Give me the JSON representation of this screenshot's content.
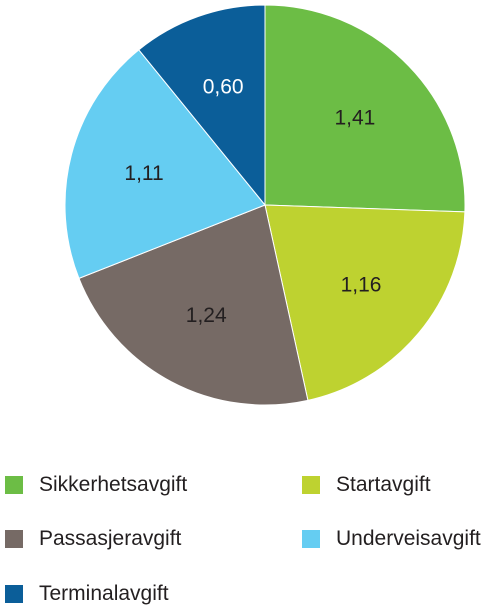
{
  "chart_data": {
    "type": "pie",
    "title": "",
    "categories": [
      "Sikkerhetsavgift",
      "Startavgift",
      "Passasjeravgift",
      "Underveisavgift",
      "Terminalavgift"
    ],
    "values": [
      1.41,
      1.16,
      1.24,
      1.11,
      0.6
    ],
    "value_labels": [
      "1,41",
      "1,16",
      "1,24",
      "1,11",
      "0,60"
    ],
    "slice_order_clockwise_from_top": [
      "Sikkerhetsavgift",
      "Startavgift",
      "Passasjeravgift",
      "Underveisavgift",
      "Terminalavgift"
    ],
    "colors": {
      "Sikkerhetsavgift": "#6cbd45",
      "Startavgift": "#bed230",
      "Passasjeravgift": "#766a65",
      "Underveisavgift": "#65cdf2",
      "Terminalavgift": "#0b5e99"
    },
    "label_colors": {
      "Sikkerhetsavgift": "#231f20",
      "Startavgift": "#231f20",
      "Passasjeravgift": "#231f20",
      "Underveisavgift": "#231f20",
      "Terminalavgift": "#ffffff"
    },
    "legend_position": "bottom",
    "legend_entries": [
      {
        "label": "Sikkerhetsavgift",
        "color": "#6cbd45"
      },
      {
        "label": "Startavgift",
        "color": "#bed230"
      },
      {
        "label": "Passasjeravgift",
        "color": "#766a65"
      },
      {
        "label": "Underveisavgift",
        "color": "#65cdf2"
      },
      {
        "label": "Terminalavgift",
        "color": "#0b5e99"
      }
    ]
  }
}
